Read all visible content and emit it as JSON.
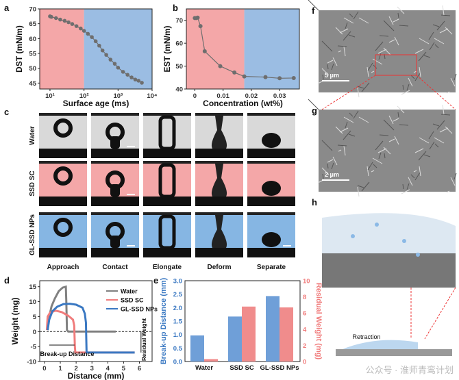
{
  "panel_letters": {
    "a": "a",
    "b": "b",
    "c": "c",
    "d": "d",
    "e": "e",
    "f": "f",
    "g": "g",
    "h": "h"
  },
  "colors": {
    "pink": "#f4a7a8",
    "blue": "#9bbde3",
    "marker": "#6e6e6e",
    "water": "#808080",
    "ssd": "#f07c7c",
    "gl": "#3a78c2",
    "bar_blue": "#6f9fd8",
    "bar_red": "#f08c8c"
  },
  "chart_data": [
    {
      "id": "a",
      "type": "scatter",
      "xscale": "log",
      "xlabel": "Surface age (ms)",
      "ylabel": "DST (mN/m)",
      "xlim": [
        5,
        10000
      ],
      "ylim": [
        43,
        70
      ],
      "xticks": [
        "10¹",
        "10²",
        "10³",
        "10⁴"
      ],
      "yticks": [
        45,
        50,
        55,
        60,
        65,
        70
      ],
      "shaded": [
        {
          "range": [
            5,
            100
          ],
          "color": "pink"
        },
        {
          "range": [
            100,
            10000
          ],
          "color": "blue"
        }
      ],
      "x": [
        10,
        11,
        15,
        20,
        27,
        35,
        45,
        60,
        80,
        100,
        130,
        170,
        220,
        280,
        350,
        450,
        600,
        800,
        1000,
        1400,
        1900,
        2500,
        3200,
        4000,
        5000
      ],
      "y": [
        67.5,
        67.3,
        66.9,
        66.4,
        66,
        65.5,
        64.9,
        64.2,
        63.4,
        62.6,
        61.6,
        60.5,
        59.1,
        57.6,
        56,
        54.5,
        52.9,
        51.5,
        50.2,
        48.8,
        47.8,
        46.9,
        46.2,
        45.8,
        45.1
      ]
    },
    {
      "id": "b",
      "type": "line",
      "xlabel": "Concentration (wt%)",
      "ylabel": "EST (mN/m)",
      "xlim": [
        -0.003,
        0.037
      ],
      "ylim": [
        40,
        75
      ],
      "xticks": [
        0,
        0.01,
        0.02,
        0.03
      ],
      "yticks": [
        40,
        50,
        60,
        70
      ],
      "shaded": [
        {
          "range": [
            -0.003,
            0.0175
          ],
          "color": "pink"
        },
        {
          "range": [
            0.0175,
            0.037
          ],
          "color": "blue"
        }
      ],
      "x": [
        0,
        0.0005,
        0.001,
        0.002,
        0.0035,
        0.009,
        0.014,
        0.0175,
        0.025,
        0.03,
        0.035
      ],
      "y": [
        71,
        71,
        71.2,
        67.5,
        56.5,
        50,
        47.2,
        45.5,
        45.2,
        44.7,
        44.8
      ]
    },
    {
      "id": "d",
      "type": "line",
      "xlabel": "Distance (mm)",
      "ylabel": "Weight (mg)",
      "xlim": [
        -0.3,
        6.8
      ],
      "ylim": [
        -10,
        17
      ],
      "xticks": [
        0,
        1,
        2,
        3,
        4,
        5,
        6
      ],
      "yticks": [
        -10,
        -5,
        0,
        5,
        10,
        15
      ],
      "legend": "top-right",
      "annotations": [
        "Break-up Distance",
        "Residual Weight"
      ],
      "series": [
        {
          "name": "Water",
          "color": "water",
          "x": [
            0.2,
            0.3,
            0.45,
            0.65,
            0.9,
            1.15,
            1.35,
            1.38,
            1.42,
            1.5,
            4.5
          ],
          "y": [
            0.5,
            5,
            8.5,
            11,
            13.5,
            14.7,
            15,
            10,
            0.5,
            0,
            0
          ]
        },
        {
          "name": "SSD SC",
          "color": "ssd",
          "x": [
            0.15,
            0.2,
            0.35,
            0.7,
            1.1,
            1.5,
            1.8,
            1.88,
            1.92,
            1.95,
            5.7
          ],
          "y": [
            0.5,
            5,
            6.3,
            7,
            6.5,
            5.3,
            4,
            2,
            -5,
            -7,
            -7
          ]
        },
        {
          "name": "GL-SSD NPs",
          "color": "gl",
          "x": [
            0.2,
            0.3,
            0.5,
            0.8,
            1.2,
            1.6,
            2.0,
            2.4,
            2.55,
            2.62,
            2.66,
            5.7
          ],
          "y": [
            0.5,
            4,
            6.8,
            8.3,
            9.2,
            9.3,
            9,
            8,
            6,
            3,
            -7,
            -7
          ]
        }
      ]
    },
    {
      "id": "e",
      "type": "bar",
      "categories": [
        "Water",
        "SSD SC",
        "GL-SSD NPs"
      ],
      "ylabel": "Break-up Distance (mm)",
      "y2label": "Residual Weight (mg)",
      "ylim": [
        0,
        3
      ],
      "y2lim": [
        0,
        10
      ],
      "yticks": [
        0,
        0.5,
        1.0,
        1.5,
        2.0,
        2.5,
        3.0
      ],
      "y2ticks": [
        0,
        2,
        4,
        6,
        8,
        10
      ],
      "series": [
        {
          "axis": "left",
          "color": "bar_blue",
          "values": [
            0.97,
            1.67,
            2.43
          ]
        },
        {
          "axis": "right",
          "color": "bar_red",
          "values": [
            0.3,
            6.8,
            6.7
          ]
        }
      ]
    }
  ],
  "panel_c": {
    "rows": [
      "Water",
      "SSD SC",
      "GL-SSD NPs"
    ],
    "columns": [
      "Approach",
      "Contact",
      "Elongate",
      "Deform",
      "Separate"
    ]
  },
  "panel_f": {
    "scale": "5 μm"
  },
  "panel_g": {
    "scale": "2 μm"
  },
  "panel_h": {
    "label": "Retraction"
  },
  "watermark": "公众号 · 淮师青鸾计划"
}
